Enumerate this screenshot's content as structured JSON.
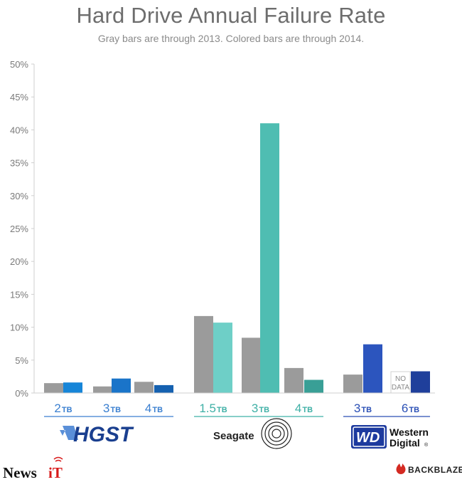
{
  "chart_data": {
    "type": "bar",
    "title": "Hard Drive Annual Failure Rate",
    "subtitle": "Gray bars are through 2013.  Colored bars are through 2014.",
    "ylim": [
      0,
      50
    ],
    "yticks": [
      "0%",
      "5%",
      "10%",
      "15%",
      "20%",
      "25%",
      "30%",
      "35%",
      "40%",
      "45%",
      "50%"
    ],
    "grid": false,
    "groups": [
      {
        "name": "HGST",
        "line_color": "#3a7fd0",
        "drives": [
          {
            "size": "2",
            "unit": "TB",
            "gray": 1.5,
            "colored": 1.6,
            "color": "#1685d8"
          },
          {
            "size": "3",
            "unit": "TB",
            "gray": 1.0,
            "colored": 2.2,
            "color": "#1a74c9"
          },
          {
            "size": "4",
            "unit": "TB",
            "gray": 1.7,
            "colored": 1.2,
            "color": "#1561b0"
          }
        ]
      },
      {
        "name": "Seagate",
        "line_color": "#3fb0a6",
        "drives": [
          {
            "size": "1.5",
            "unit": "TB",
            "gray": 11.7,
            "colored": 10.7,
            "color": "#6ecfc7"
          },
          {
            "size": "3",
            "unit": "TB",
            "gray": 8.4,
            "colored": 41.0,
            "color": "#4fbdb2"
          },
          {
            "size": "4",
            "unit": "TB",
            "gray": 3.8,
            "colored": 2.0,
            "color": "#399f96"
          }
        ]
      },
      {
        "name": "Western Digital",
        "line_color": "#2a4fb5",
        "drives": [
          {
            "size": "3",
            "unit": "TB",
            "gray": 2.8,
            "colored": 7.4,
            "color": "#2c55be"
          },
          {
            "size": "6",
            "unit": "TB",
            "gray": null,
            "gray_label_1": "NO",
            "gray_label_2": "DATA",
            "colored": 3.3,
            "color": "#1f3f9b"
          }
        ]
      }
    ],
    "gray_color": "#9b9b9b"
  },
  "logos": {
    "hgst": "HGST",
    "seagate": "Seagate",
    "wd_mark": "WD",
    "wd_line1": "Western",
    "wd_line2": "Digital",
    "wd_reg": "®",
    "backblaze": "BACKBLAZE",
    "news": "News",
    "news_it": "iT"
  }
}
